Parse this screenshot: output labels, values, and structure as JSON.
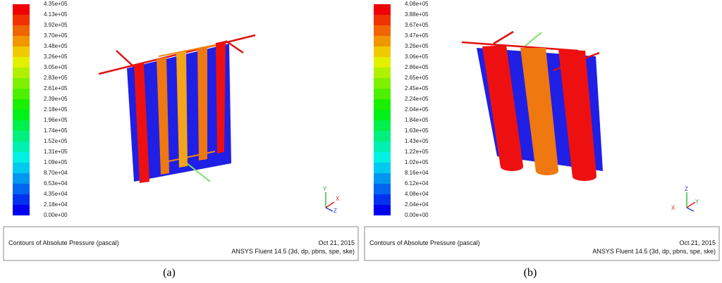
{
  "panels": [
    {
      "legend": [
        "4.35e+05",
        "4.13e+05",
        "3.92e+05",
        "3.70e+05",
        "3.48e+05",
        "3.26e+05",
        "3.05e+05",
        "2.83e+05",
        "2.61e+05",
        "2.39e+05",
        "2.18e+05",
        "1.96e+05",
        "1.74e+05",
        "1.52e+05",
        "1.31e+05",
        "1.09e+05",
        "8.70e+04",
        "6.53e+04",
        "4.35e+04",
        "2.18e+04",
        "0.00e+00"
      ],
      "axes": [
        "Y",
        "X",
        "Z"
      ],
      "caption": "Contours of Absolute Pressure (pascal)",
      "date": "Oct 21, 2015",
      "software": "ANSYS Fluent 14.5 (3d, dp, pbns, spe, ske)",
      "label": "(a)"
    },
    {
      "legend": [
        "4.08e+05",
        "3.88e+05",
        "3.67e+05",
        "3.47e+05",
        "3.26e+05",
        "3.06e+05",
        "2.86e+05",
        "2.65e+05",
        "2.45e+05",
        "2.24e+05",
        "2.04e+05",
        "1.84e+05",
        "1.63e+05",
        "1.43e+05",
        "1.22e+05",
        "1.02e+05",
        "8.16e+04",
        "6.12e+04",
        "4.08e+04",
        "2.04e+04",
        "0.00e+00"
      ],
      "axes": [
        "Z",
        "X",
        "Y"
      ],
      "caption": "Contours of Absolute Pressure (pascal)",
      "date": "Oct 21, 2015",
      "software": "ANSYS Fluent 14.5 (3d, dp, pbns, spe, ske)",
      "label": "(b)"
    }
  ]
}
